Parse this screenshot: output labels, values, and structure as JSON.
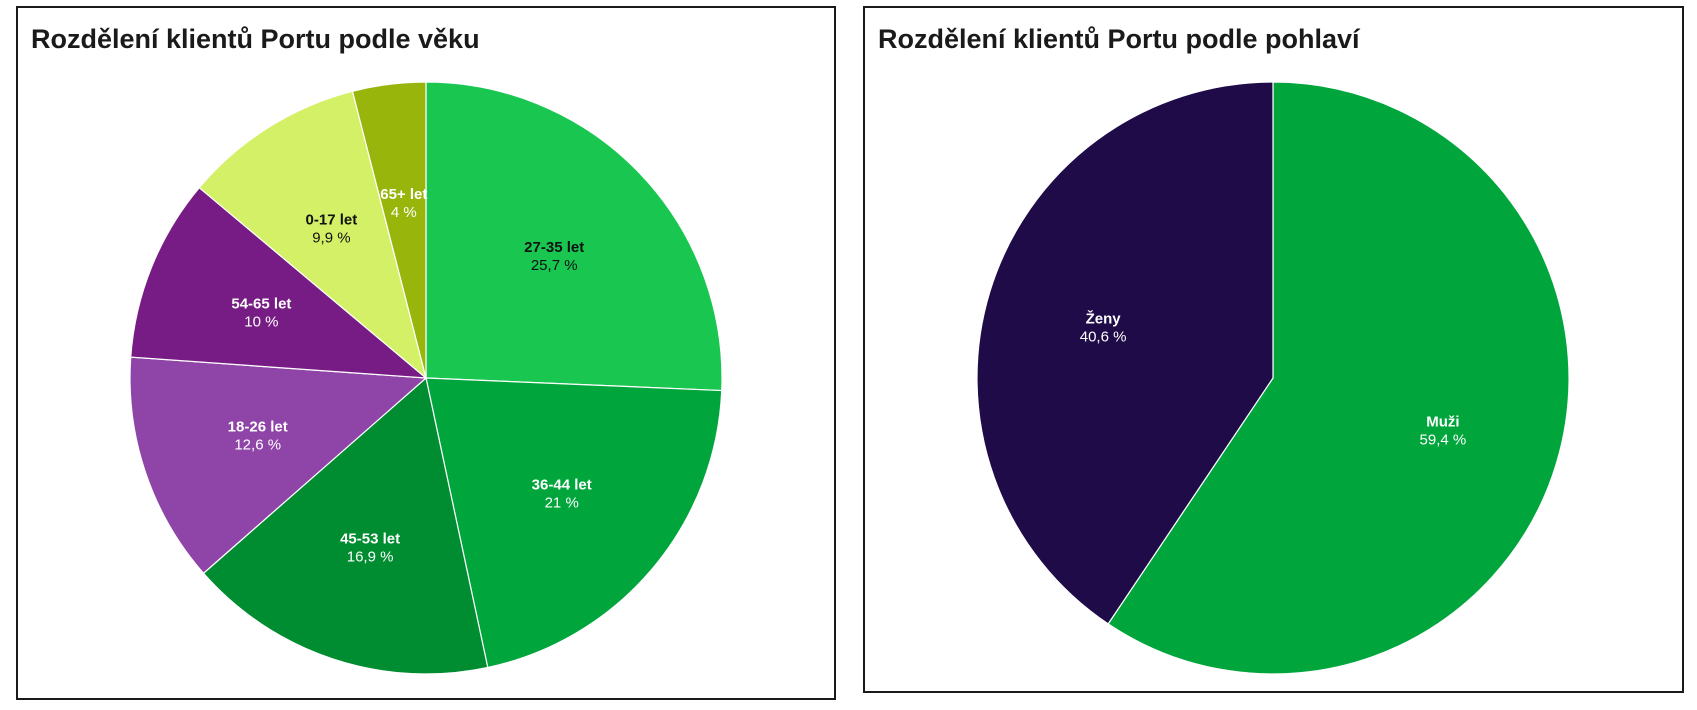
{
  "chart_data": [
    {
      "type": "pie",
      "title": "Rozdělení klientů Portu podle věku",
      "slices": [
        {
          "label": "27-35 let",
          "value_text": "25,7 %",
          "value": 25.7,
          "color": "#18c650",
          "text_color": "#111111"
        },
        {
          "label": "36-44 let",
          "value_text": "21 %",
          "value": 21.0,
          "color": "#00a63c",
          "text_color": "#ffffff"
        },
        {
          "label": "45-53 let",
          "value_text": "16,9 %",
          "value": 16.9,
          "color": "#008c30",
          "text_color": "#ffffff"
        },
        {
          "label": "18-26 let",
          "value_text": "12,6 %",
          "value": 12.6,
          "color": "#8f45a8",
          "text_color": "#ffffff"
        },
        {
          "label": "54-65 let",
          "value_text": "10 %",
          "value": 10.0,
          "color": "#771c84",
          "text_color": "#ffffff"
        },
        {
          "label": "0-17 let",
          "value_text": "9,9 %",
          "value": 9.9,
          "color": "#d4f067",
          "text_color": "#111111"
        },
        {
          "label": "65+ let",
          "value_text": "4 %",
          "value": 4.0,
          "color": "#98b50c",
          "text_color": "#ffffff"
        }
      ],
      "start": "12 o'clock",
      "direction": "clockwise"
    },
    {
      "type": "pie",
      "title": "Rozdělení klientů Portu podle pohlaví",
      "slices": [
        {
          "label": "Muži",
          "value_text": "59,4 %",
          "value": 59.4,
          "color": "#00a63c",
          "text_color": "#ffffff"
        },
        {
          "label": "Ženy",
          "value_text": "40,6 %",
          "value": 40.6,
          "color": "#1e0b48",
          "text_color": "#ffffff"
        }
      ],
      "start": "12 o'clock",
      "direction": "clockwise"
    }
  ]
}
